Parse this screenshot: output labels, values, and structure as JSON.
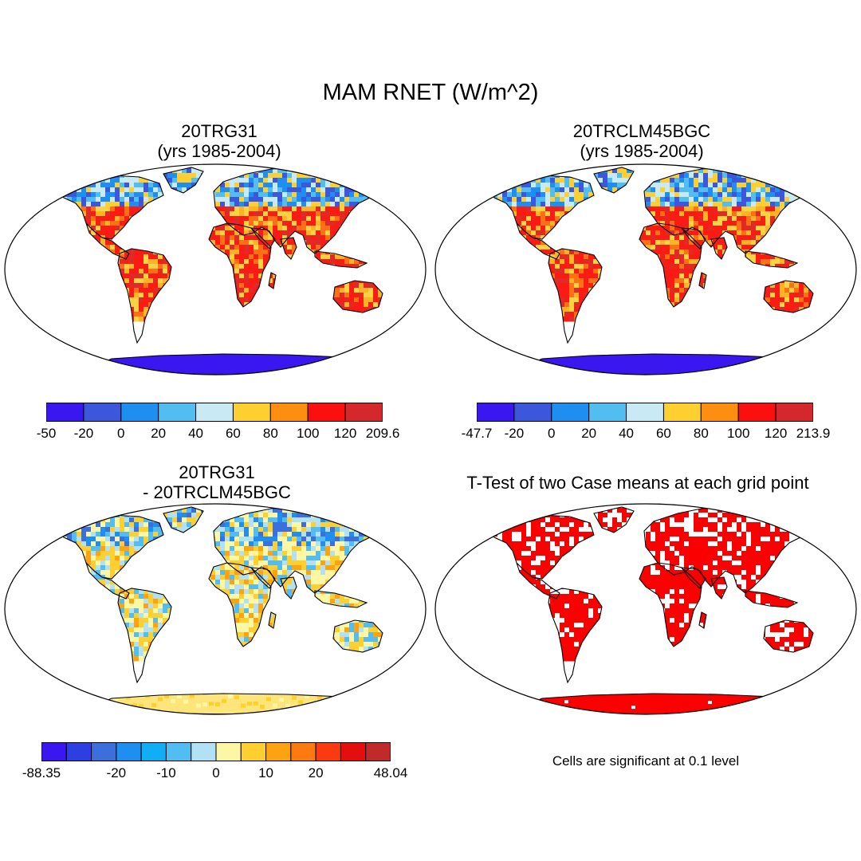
{
  "title": "MAM RNET (W/m^2)",
  "panels": [
    {
      "id": "p1",
      "title": "20TRG31\n(yrs 1985-2004)",
      "colors": [
        "#3a17f0",
        "#3c56dc",
        "#1e8ef0",
        "#52bdf0",
        "#c9e9f5",
        "#fdd030",
        "#fd8e10",
        "#fb0f0f",
        "#d5282c"
      ],
      "tick_labels": [
        "-50",
        "-20",
        "0",
        "20",
        "40",
        "60",
        "80",
        "100",
        "120",
        "209.6"
      ],
      "land_palette": [
        "#fb1b15",
        "#e02a28",
        "#fb1b15",
        "#fd7015",
        "#fdb326",
        "#fbd242",
        "#fb1b15"
      ],
      "north_palette": [
        "#52bdf0",
        "#1e8ef0",
        "#c9e9f5",
        "#fdd030",
        "#3c56dc"
      ],
      "ant_color": "#3a17f0"
    },
    {
      "id": "p2",
      "title": "20TRCLM45BGC\n(yrs 1985-2004)",
      "colors": [
        "#3a17f0",
        "#3c56dc",
        "#1e8ef0",
        "#52bdf0",
        "#c9e9f5",
        "#fdd030",
        "#fd8e10",
        "#fb0f0f",
        "#d5282c"
      ],
      "tick_labels": [
        "-47.7",
        "-20",
        "0",
        "20",
        "40",
        "60",
        "80",
        "100",
        "120",
        "213.9"
      ],
      "land_palette": [
        "#fb1b15",
        "#e02a28",
        "#fd7015",
        "#fb1b15",
        "#fdb326",
        "#fbd242",
        "#fb1b15"
      ],
      "north_palette": [
        "#52bdf0",
        "#1e8ef0",
        "#c9e9f5",
        "#fdd030",
        "#3c56dc"
      ],
      "ant_color": "#3a17f0"
    },
    {
      "id": "p3",
      "title": "20TRG31\n- 20TRCLM45BGC",
      "colors": [
        "#3a17f0",
        "#2d3fe0",
        "#3c6fdc",
        "#1e8ef0",
        "#11adf5",
        "#52bdf0",
        "#b2e0f5",
        "#fdf7a5",
        "#fdd030",
        "#fda210",
        "#fd7a10",
        "#fb3a10",
        "#e30f0f",
        "#c02a2a"
      ],
      "tick_labels": [
        "-88.35",
        "-20",
        "-10",
        "0",
        "10",
        "20",
        "48.04"
      ],
      "tick_indices": [
        0,
        3,
        5,
        7,
        9,
        11,
        14
      ],
      "land_palette": [
        "#fdf7a5",
        "#fdd030",
        "#b2e0f5",
        "#fdf7a5",
        "#fda210",
        "#52bdf0",
        "#fdd030"
      ],
      "north_palette": [
        "#52bdf0",
        "#3c6fdc",
        "#fdf7a5",
        "#b2e0f5",
        "#1e8ef0",
        "#fdd030"
      ],
      "ant_color": "#fde57a"
    },
    {
      "id": "p4",
      "title": "T-Test of two Case means at each grid point",
      "land_palette": [
        "#fb0000",
        "#fb0000",
        "#fb0000",
        "#ffffff",
        "#fb0000"
      ],
      "north_palette": [
        "#fb0000",
        "#ffffff",
        "#fb0000"
      ],
      "ant_color": "#fb0000"
    }
  ],
  "significance_note": "Cells are significant at 0.1 level"
}
